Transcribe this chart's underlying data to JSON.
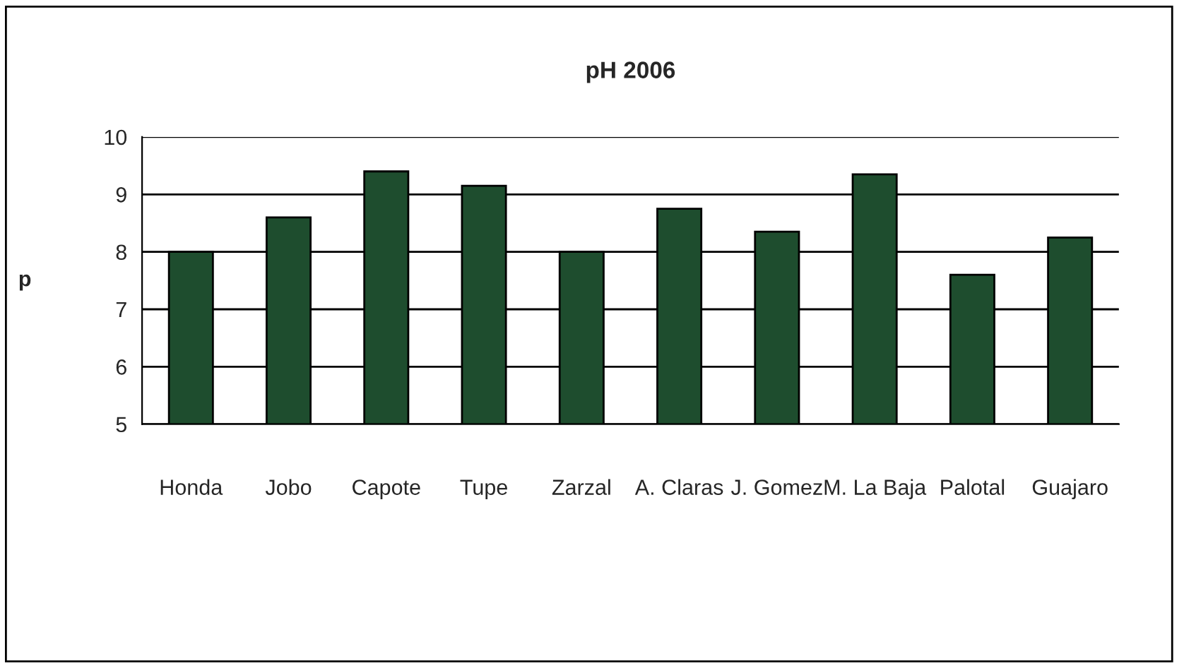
{
  "chart_data": {
    "type": "bar",
    "title": "pH 2006",
    "ylabel": "p",
    "categories": [
      "Honda",
      "Jobo",
      "Capote",
      "Tupe",
      "Zarzal",
      "A. Claras",
      "J. Gomez",
      "M. La Baja",
      "Palotal",
      "Guajaro"
    ],
    "values": [
      8.0,
      8.6,
      9.4,
      9.15,
      8.0,
      8.75,
      8.35,
      9.35,
      7.6,
      8.25
    ],
    "color": "#1e4d2e",
    "ylim": [
      5,
      10
    ],
    "yticks": [
      5,
      6,
      7,
      8,
      9,
      10
    ],
    "grid": "y",
    "legend": false
  }
}
